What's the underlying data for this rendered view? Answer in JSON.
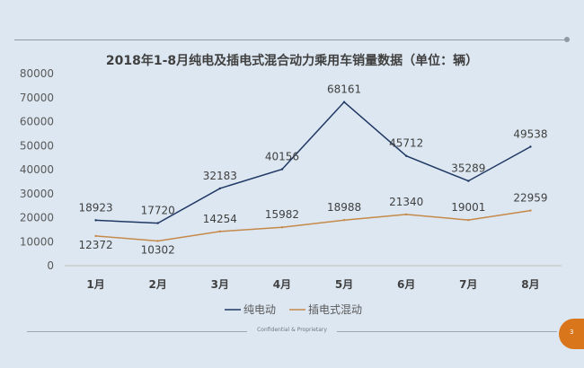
{
  "chart_data": {
    "type": "line",
    "title": "2018年1-8月纯电及插电式混合动力乘用车销量数据（单位：辆）",
    "categories": [
      "1月",
      "2月",
      "3月",
      "4月",
      "5月",
      "6月",
      "7月",
      "8月"
    ],
    "series": [
      {
        "name": "纯电动",
        "color": "#1f3864",
        "values": [
          18923,
          17720,
          32183,
          40156,
          68161,
          45712,
          35289,
          49538
        ]
      },
      {
        "name": "插电式混动",
        "color": "#c5894a",
        "values": [
          12372,
          10302,
          14254,
          15982,
          18988,
          21340,
          19001,
          22959
        ]
      }
    ],
    "yticks": [
      "0",
      "10000",
      "20000",
      "30000",
      "40000",
      "50000",
      "60000",
      "70000",
      "80000"
    ],
    "ylim": [
      0,
      80000
    ],
    "data_labels": true,
    "grid": false,
    "legend": "bottom"
  },
  "footer": {
    "text": "Confidential & Proprietary"
  },
  "page_number": "3"
}
